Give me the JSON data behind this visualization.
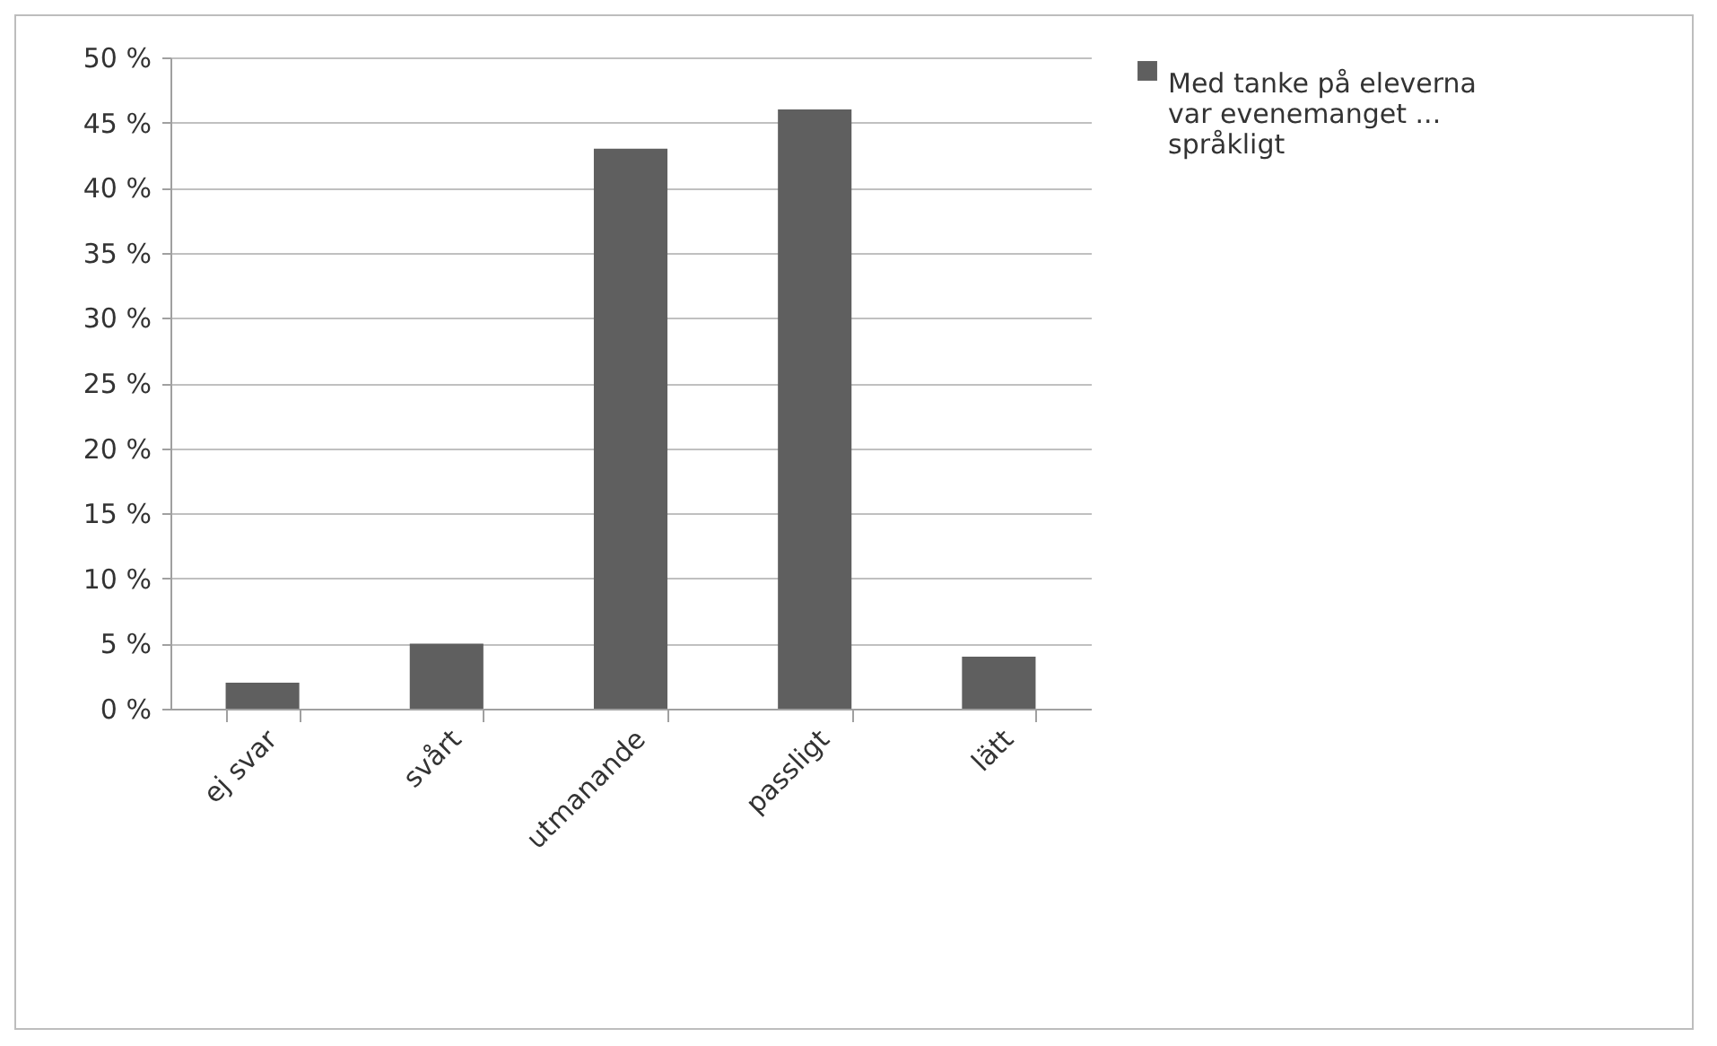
{
  "chart_data": {
    "type": "bar",
    "categories": [
      "ej svar",
      "svårt",
      "utmanande",
      "passligt",
      "lätt"
    ],
    "series": [
      {
        "name": "Med tanke på eleverna var evenemanget ... språkligt",
        "color": "#5f5f5f",
        "values": [
          2,
          5,
          43,
          46,
          4
        ]
      }
    ],
    "ylim": [
      0,
      50
    ],
    "yticks": [
      {
        "value": 0,
        "label": "0 %"
      },
      {
        "value": 5,
        "label": "5 %"
      },
      {
        "value": 10,
        "label": "10 %"
      },
      {
        "value": 15,
        "label": "15 %"
      },
      {
        "value": 20,
        "label": "20 %"
      },
      {
        "value": 25,
        "label": "25 %"
      },
      {
        "value": 30,
        "label": "30 %"
      },
      {
        "value": 35,
        "label": "35 %"
      },
      {
        "value": 40,
        "label": "40 %"
      },
      {
        "value": 45,
        "label": "45 %"
      },
      {
        "value": 50,
        "label": "50 %"
      }
    ],
    "grid": "y",
    "legend": "right"
  }
}
